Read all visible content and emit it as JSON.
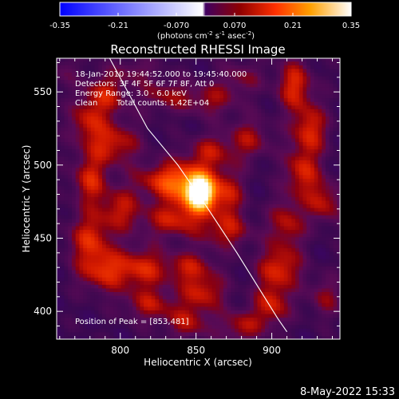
{
  "chart_data": {
    "type": "heatmap",
    "title": "Reconstructed RHESSI Image",
    "xlabel": "Heliocentric X (arcsec)",
    "ylabel": "Heliocentric Y (arcsec)",
    "xlim": [
      758,
      945
    ],
    "ylim": [
      381,
      573
    ],
    "x_ticks": [
      800,
      850,
      900
    ],
    "y_ticks": [
      400,
      450,
      500,
      550
    ],
    "grid": false,
    "colorbar": {
      "ticks": [
        "-0.35",
        "-0.21",
        "-0.070",
        "0.070",
        "0.21",
        "0.35"
      ],
      "range": [
        -0.35,
        0.35
      ],
      "label_main": "(photons cm",
      "label_exp1": "-2",
      "label_mid1": " s",
      "label_exp2": "-1",
      "label_mid2": " asec",
      "label_exp3": "-2",
      "label_end": ")",
      "colormap": [
        "#0000ff",
        "#ffffff",
        "#400060",
        "#900000",
        "#ff3000",
        "#ffa000",
        "#ffffff"
      ]
    },
    "annotations": {
      "line1": "18-Jan-2010 19:44:52.000 to 19:45:40.000",
      "line2": "Detectors: 3F 4F 5F 6F 7F 8F, Att 0",
      "line3": "Energy Range: 3.0 - 6.0 keV",
      "line4_left": "Clean",
      "line4_right": "Total counts: 1.42E+04",
      "peak": "Position of Peak = [853,481]"
    },
    "peak_position": [
      853,
      481
    ],
    "limb_curve": [
      [
        793,
        573
      ],
      [
        805,
        550
      ],
      [
        818,
        525
      ],
      [
        838,
        500
      ],
      [
        858,
        470
      ],
      [
        877,
        440
      ],
      [
        892,
        415
      ],
      [
        904,
        395
      ],
      [
        910,
        386
      ]
    ],
    "hotspots": [
      {
        "x": 853,
        "y": 481,
        "v": 0.35,
        "sx": 6,
        "sy": 8
      },
      {
        "x": 845,
        "y": 486,
        "v": 0.22,
        "sx": 12,
        "sy": 12
      },
      {
        "x": 870,
        "y": 480,
        "v": 0.14,
        "sx": 8,
        "sy": 12
      },
      {
        "x": 825,
        "y": 490,
        "v": 0.12,
        "sx": 12,
        "sy": 8
      },
      {
        "x": 835,
        "y": 462,
        "v": 0.13,
        "sx": 14,
        "sy": 8
      },
      {
        "x": 870,
        "y": 455,
        "v": 0.12,
        "sx": 12,
        "sy": 8
      },
      {
        "x": 790,
        "y": 548,
        "v": 0.14,
        "sx": 10,
        "sy": 10
      },
      {
        "x": 778,
        "y": 530,
        "v": 0.12,
        "sx": 8,
        "sy": 10
      },
      {
        "x": 795,
        "y": 515,
        "v": 0.15,
        "sx": 12,
        "sy": 10
      },
      {
        "x": 780,
        "y": 490,
        "v": 0.15,
        "sx": 8,
        "sy": 12
      },
      {
        "x": 800,
        "y": 470,
        "v": 0.13,
        "sx": 10,
        "sy": 10
      },
      {
        "x": 780,
        "y": 450,
        "v": 0.15,
        "sx": 10,
        "sy": 12
      },
      {
        "x": 790,
        "y": 428,
        "v": 0.16,
        "sx": 12,
        "sy": 10
      },
      {
        "x": 815,
        "y": 430,
        "v": 0.14,
        "sx": 10,
        "sy": 10
      },
      {
        "x": 845,
        "y": 430,
        "v": 0.13,
        "sx": 12,
        "sy": 8
      },
      {
        "x": 855,
        "y": 413,
        "v": 0.14,
        "sx": 10,
        "sy": 8
      },
      {
        "x": 820,
        "y": 405,
        "v": 0.12,
        "sx": 12,
        "sy": 8
      },
      {
        "x": 845,
        "y": 393,
        "v": 0.12,
        "sx": 10,
        "sy": 8
      },
      {
        "x": 830,
        "y": 548,
        "v": 0.1,
        "sx": 12,
        "sy": 8
      },
      {
        "x": 860,
        "y": 545,
        "v": 0.1,
        "sx": 12,
        "sy": 8
      },
      {
        "x": 885,
        "y": 518,
        "v": 0.11,
        "sx": 10,
        "sy": 10
      },
      {
        "x": 860,
        "y": 510,
        "v": 0.11,
        "sx": 10,
        "sy": 8
      },
      {
        "x": 915,
        "y": 555,
        "v": 0.16,
        "sx": 8,
        "sy": 12
      },
      {
        "x": 925,
        "y": 525,
        "v": 0.16,
        "sx": 8,
        "sy": 12
      },
      {
        "x": 920,
        "y": 495,
        "v": 0.15,
        "sx": 8,
        "sy": 12
      },
      {
        "x": 910,
        "y": 460,
        "v": 0.13,
        "sx": 8,
        "sy": 12
      },
      {
        "x": 935,
        "y": 475,
        "v": 0.13,
        "sx": 8,
        "sy": 10
      },
      {
        "x": 905,
        "y": 430,
        "v": 0.16,
        "sx": 10,
        "sy": 10
      },
      {
        "x": 900,
        "y": 405,
        "v": 0.15,
        "sx": 8,
        "sy": 10
      },
      {
        "x": 880,
        "y": 390,
        "v": 0.12,
        "sx": 10,
        "sy": 8
      },
      {
        "x": 935,
        "y": 410,
        "v": 0.09,
        "sx": 8,
        "sy": 10
      },
      {
        "x": 880,
        "y": 560,
        "v": 0.08,
        "sx": 10,
        "sy": 8
      },
      {
        "x": 810,
        "y": 565,
        "v": 0.07,
        "sx": 10,
        "sy": 6
      },
      {
        "x": 762,
        "y": 565,
        "v": 0.05,
        "sx": 8,
        "sy": 8
      }
    ]
  },
  "footer": {
    "date": "8-May-2022 15:33"
  }
}
